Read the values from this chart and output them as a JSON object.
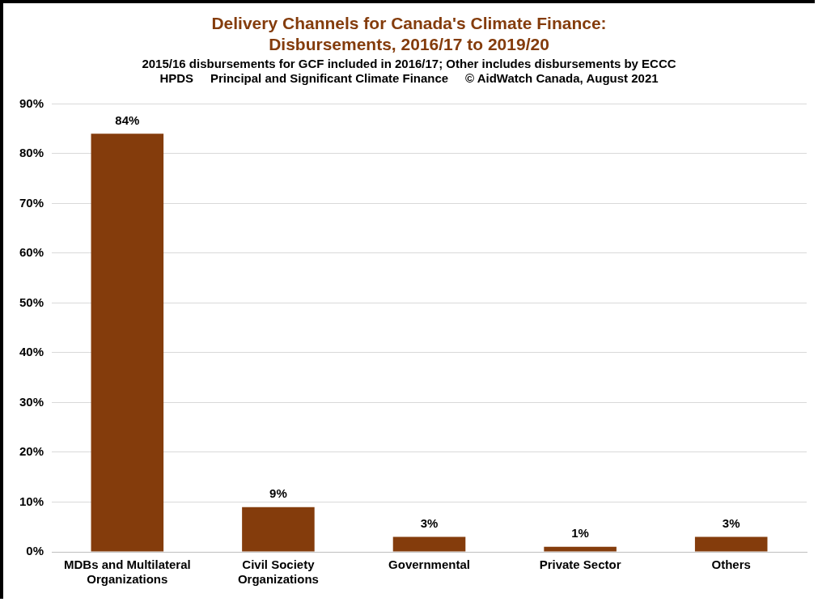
{
  "chart_data": {
    "type": "bar",
    "title": "Delivery Channels for Canada's Climate Finance: Disbursements, 2016/17 to 2019/20",
    "subtitle": "2015/16 disbursements for GCF included in 2016/17; Other includes disbursements by ECCC",
    "annotations": [
      "HPDS     Principal and Significant Climate Finance     © AidWatch Canada, August 2021"
    ],
    "categories": [
      "MDBs and Multilateral Organizations",
      "Civil Society Organizations",
      "Governmental",
      "Private Sector",
      "Others"
    ],
    "values": [
      84,
      9,
      3,
      1,
      3
    ],
    "value_labels": [
      "84%",
      "9%",
      "3%",
      "1%",
      "3%"
    ],
    "color": "#843c0c",
    "ylim": [
      0,
      90
    ],
    "yticks": [
      {
        "value": 0,
        "label": "0%"
      },
      {
        "value": 10,
        "label": "10%"
      },
      {
        "value": 20,
        "label": "20%"
      },
      {
        "value": 30,
        "label": "30%"
      },
      {
        "value": 40,
        "label": "40%"
      },
      {
        "value": 50,
        "label": "50%"
      },
      {
        "value": 60,
        "label": "60%"
      },
      {
        "value": 70,
        "label": "70%"
      },
      {
        "value": 80,
        "label": "80%"
      },
      {
        "value": 90,
        "label": "90%"
      }
    ],
    "grid": "y",
    "legend": false
  }
}
